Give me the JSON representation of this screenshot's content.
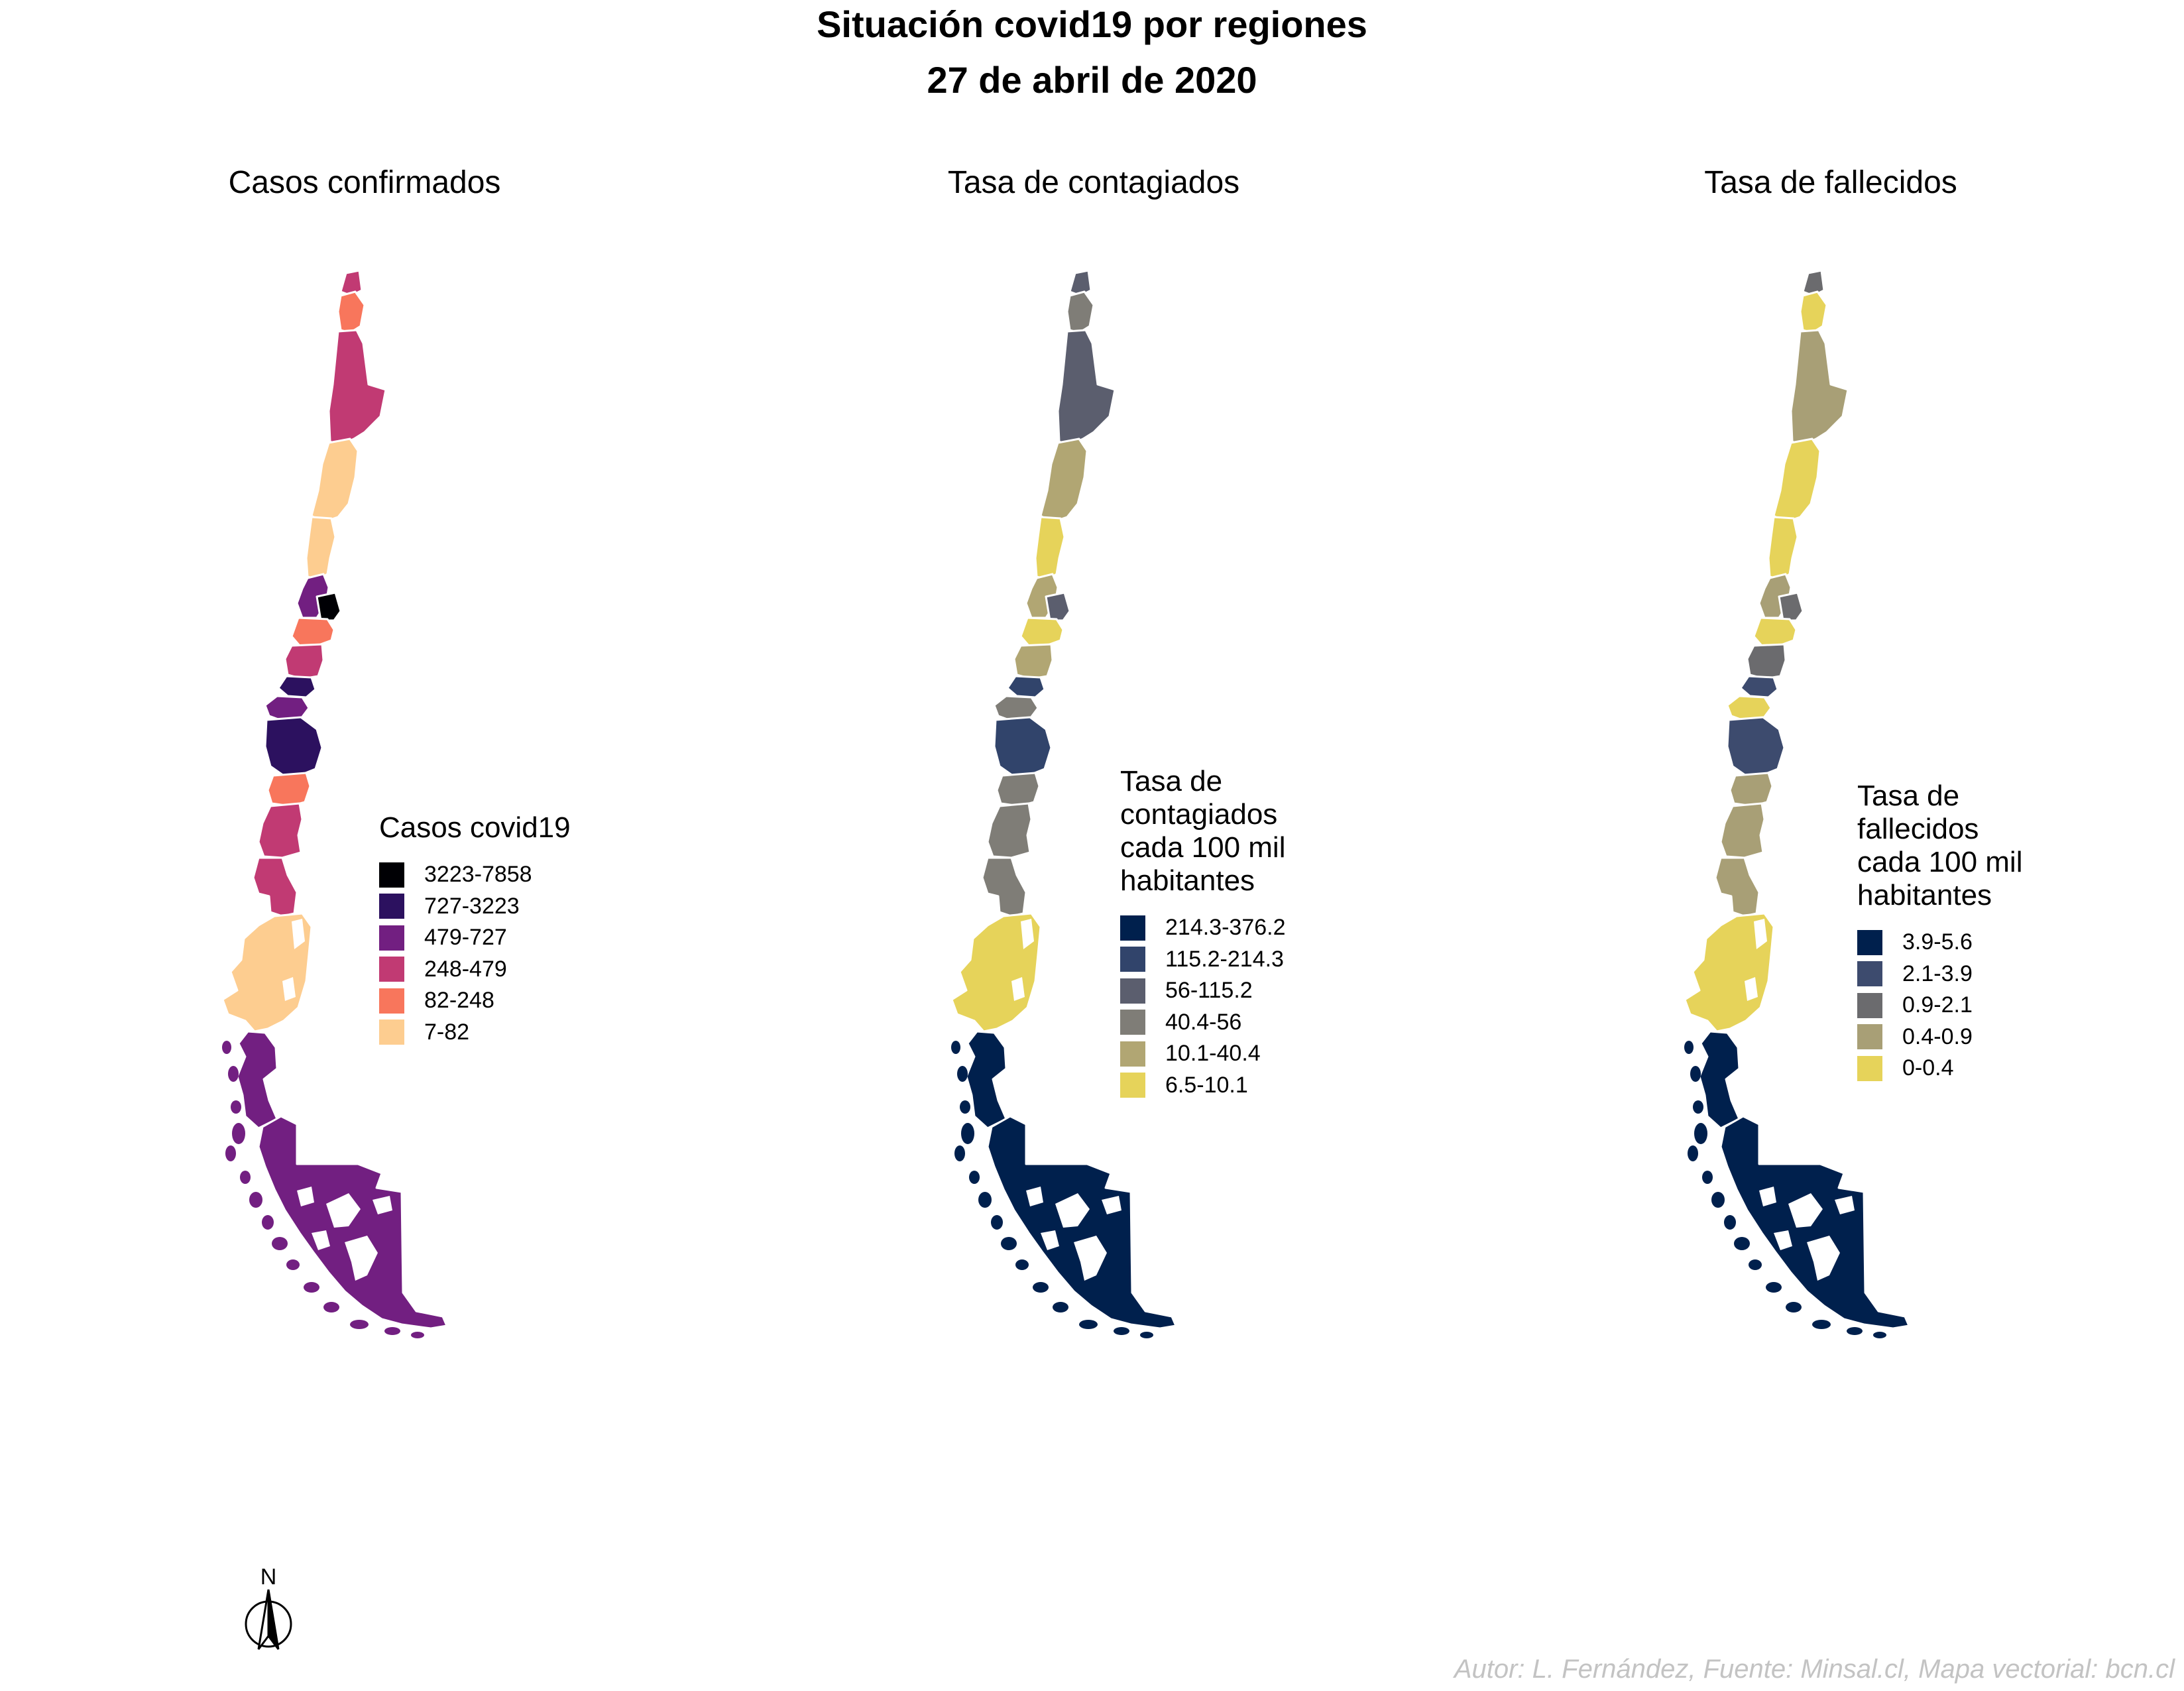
{
  "title": "Situación covid19 por regiones",
  "subtitle": "27 de abril de 2020",
  "caption": "Autor: L. Fernández, Fuente: Minsal.cl, Mapa vectorial: bcn.cl",
  "north_arrow": {
    "label": "N"
  },
  "panels": [
    {
      "title": "Casos confirmados",
      "legend": {
        "title": "Casos covid19",
        "items": [
          {
            "label": "3223-7858",
            "color": "#000004"
          },
          {
            "label": "727-3223",
            "color": "#2c115f"
          },
          {
            "label": "479-727",
            "color": "#721f81"
          },
          {
            "label": "248-479",
            "color": "#c13a73"
          },
          {
            "label": "82-248",
            "color": "#f8765c"
          },
          {
            "label": "7-82",
            "color": "#fdcd90"
          }
        ]
      },
      "regions": [
        "#c13a73",
        "#f8765c",
        "#c13a73",
        "#fdcd90",
        "#fdcd90",
        "#721f81",
        "#000004",
        "#f8765c",
        "#c13a73",
        "#2c115f",
        "#721f81",
        "#2c115f",
        "#f8765c",
        "#c13a73",
        "#c13a73",
        "#fdcd90",
        "#721f81",
        "#721f81"
      ]
    },
    {
      "title": "Tasa de contagiados",
      "legend": {
        "title": "Tasa de\ncontagiados\ncada 100 mil\nhabitantes",
        "items": [
          {
            "label": "214.3-376.2",
            "color": "#00204d"
          },
          {
            "label": "115.2-214.3",
            "color": "#31446b"
          },
          {
            "label": "56-115.2",
            "color": "#5b5e6e"
          },
          {
            "label": "40.4-56",
            "color": "#7f7d77"
          },
          {
            "label": "10.1-40.4",
            "color": "#b1a673"
          },
          {
            "label": "6.5-10.1",
            "color": "#e6d35a"
          }
        ]
      },
      "regions": [
        "#5b5e6e",
        "#7f7d77",
        "#5b5e6e",
        "#b1a673",
        "#e6d35a",
        "#b1a673",
        "#5b5e6e",
        "#e6d35a",
        "#b1a673",
        "#31446b",
        "#7f7d77",
        "#31446b",
        "#7f7d77",
        "#7f7d77",
        "#7f7d77",
        "#e6d35a",
        "#00204d",
        "#00204d"
      ]
    },
    {
      "title": "Tasa de fallecidos",
      "legend": {
        "title": "Tasa de\nfallecidos\ncada 100 mil\nhabitantes",
        "items": [
          {
            "label": "3.9-5.6",
            "color": "#00204d"
          },
          {
            "label": "2.1-3.9",
            "color": "#3d4b6e"
          },
          {
            "label": "0.9-2.1",
            "color": "#6b6b6e"
          },
          {
            "label": "0.4-0.9",
            "color": "#a89f76"
          },
          {
            "label": "0-0.4",
            "color": "#e6d35a"
          }
        ]
      },
      "regions": [
        "#6b6b6e",
        "#e6d35a",
        "#a89f76",
        "#e6d35a",
        "#e6d35a",
        "#a89f76",
        "#6b6b6e",
        "#e6d35a",
        "#6b6b6e",
        "#3d4b6e",
        "#e6d35a",
        "#3d4b6e",
        "#a89f76",
        "#a89f76",
        "#a89f76",
        "#e6d35a",
        "#00204d",
        "#00204d"
      ]
    }
  ]
}
